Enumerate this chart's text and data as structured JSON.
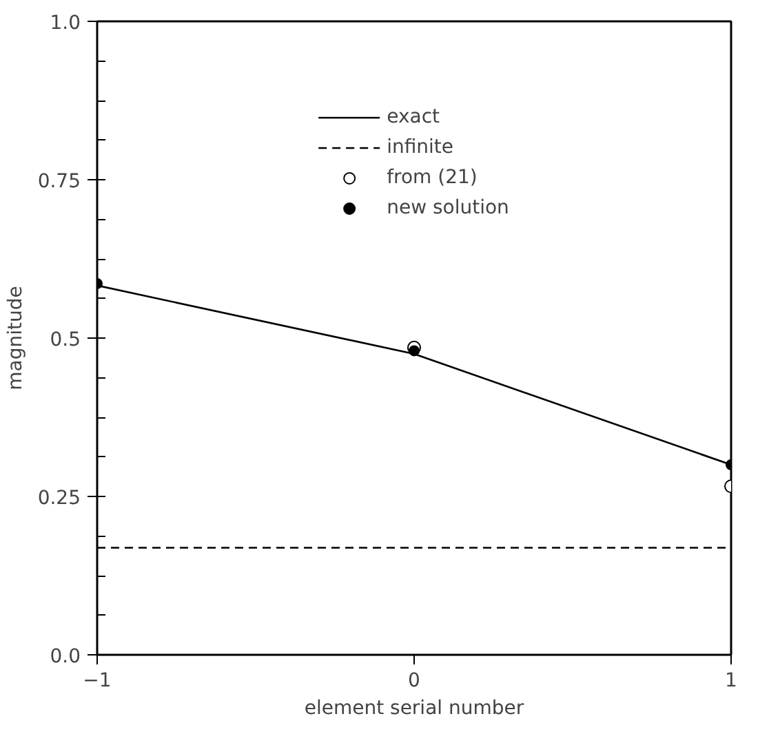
{
  "chart_data": {
    "type": "line",
    "xlabel": "element serial number",
    "ylabel": "magnitude",
    "x": [
      -1,
      0,
      1
    ],
    "series": [
      {
        "name": "exact",
        "marker": "none",
        "color": "#000000",
        "line_style": "solid",
        "values": [
          0.583,
          0.475,
          0.3
        ]
      },
      {
        "name": "infinite",
        "marker": "none",
        "color": "#000000",
        "line_style": "dashed",
        "values": [
          0.169,
          0.169,
          0.169
        ]
      },
      {
        "name": "from (21)",
        "type": "scatter",
        "color": "#000000",
        "values": [
          null,
          0.485,
          0.266
        ]
      },
      {
        "name": "new solution",
        "type": "scatter",
        "color": "#000000",
        "marker": "circle",
        "values": [
          0.586,
          0.48,
          0.3
        ]
      }
    ],
    "xlim": [
      -1,
      1
    ],
    "xticks": [
      {
        "value": -1,
        "label": "−1"
      },
      0,
      1
    ],
    "ylim": [
      0,
      1
    ],
    "yticks": [
      {
        "value": 0,
        "label": "0.0"
      },
      0.25,
      0.5,
      0.75,
      {
        "value": 1,
        "label": "1.0"
      }
    ],
    "grid": false,
    "legend": "top",
    "marker": "circle"
  }
}
